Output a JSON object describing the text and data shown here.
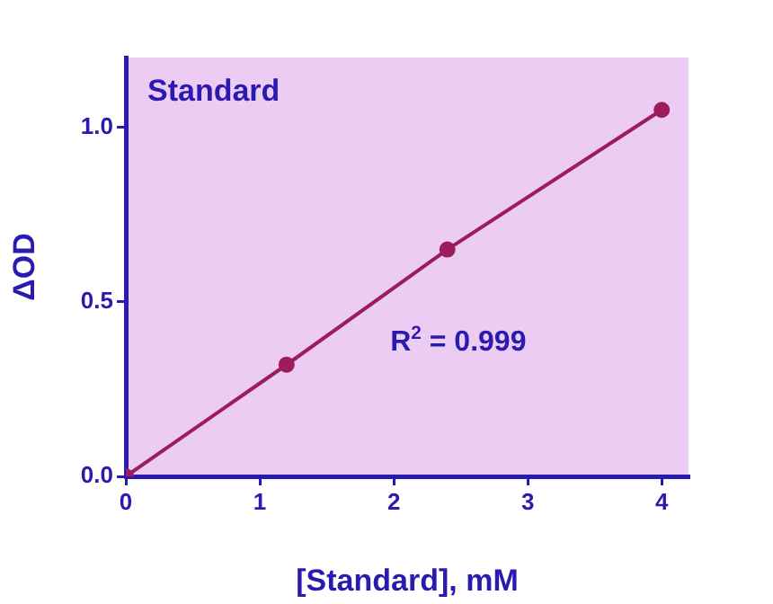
{
  "chart_data": {
    "type": "line",
    "title": "Standard",
    "xlabel": "[Standard], mM",
    "ylabel": "ΔOD",
    "annotations": [
      "R$^{2}$ = 0.999"
    ],
    "x": [
      0,
      1.2,
      2.4,
      4
    ],
    "series": [
      {
        "color": "#9c1c5c",
        "values": [
          0,
          0.32,
          0.65,
          1.05
        ]
      }
    ],
    "xlim": [
      0,
      4.2
    ],
    "xticks": [
      0,
      1,
      2,
      3,
      4
    ],
    "ylim": [
      0,
      1.2
    ],
    "yticks": [
      {
        "value": 0,
        "label": "0.0"
      },
      {
        "value": 0.5,
        "label": "0.5"
      },
      {
        "value": 1,
        "label": "1.0"
      }
    ],
    "grid": false,
    "legend": false,
    "marker": "circle",
    "line_style": "solid"
  }
}
